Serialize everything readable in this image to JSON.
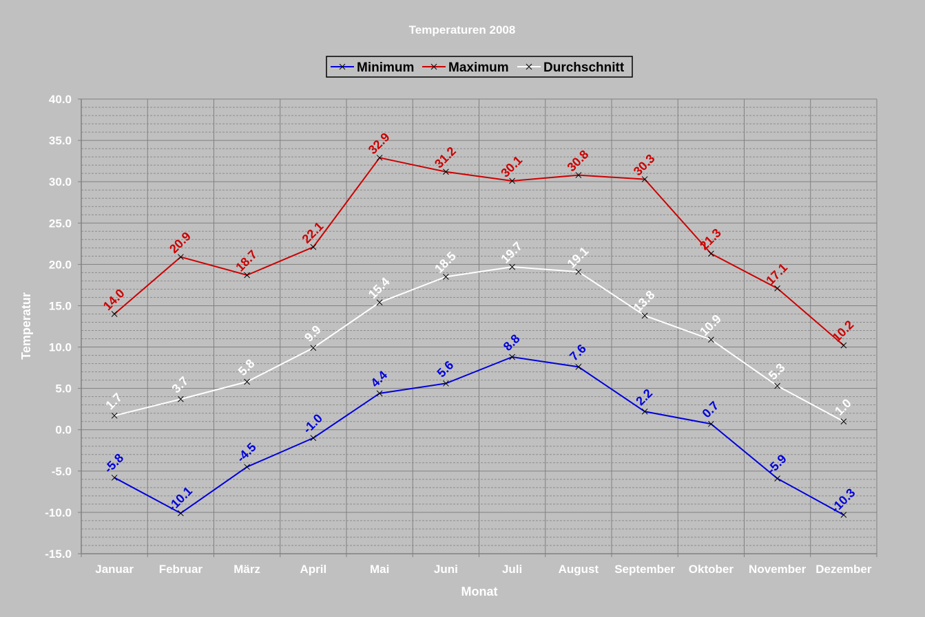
{
  "chart_data": {
    "type": "line",
    "title": "Temperaturen 2008",
    "xlabel": "Monat",
    "ylabel": "Temperatur",
    "categories": [
      "Januar",
      "Februar",
      "März",
      "April",
      "Mai",
      "Juni",
      "Juli",
      "August",
      "September",
      "Oktober",
      "November",
      "Dezember"
    ],
    "ylim": [
      -15,
      40
    ],
    "y_major_step": 5,
    "y_minor_step": 1,
    "y_tick_labels": [
      "40.0",
      "35.0",
      "30.0",
      "25.0",
      "20.0",
      "15.0",
      "10.0",
      "5.0",
      "0.0",
      "-5.0",
      "-10.0",
      "-15.0"
    ],
    "grid": true,
    "legend_position": "top-center",
    "background_color": "#c0c0c0",
    "text_color": "#ffffff",
    "series": [
      {
        "name": "Minimum",
        "color": "#0000dd",
        "values": [
          -5.8,
          -10.1,
          -4.5,
          -1.0,
          4.4,
          5.6,
          8.8,
          7.6,
          2.2,
          0.7,
          -5.9,
          -10.3
        ],
        "labels": [
          "-5.8",
          "-10.1",
          "-4.5",
          "-1.0",
          "4.4",
          "5.6",
          "8.8",
          "7.6",
          "2.2",
          "0.7",
          "-5.9",
          "-10.3"
        ]
      },
      {
        "name": "Maximum",
        "color": "#cc0000",
        "values": [
          14.0,
          20.9,
          18.7,
          22.1,
          32.9,
          31.2,
          30.1,
          30.8,
          30.3,
          21.3,
          17.1,
          10.2
        ],
        "labels": [
          "14.0",
          "20.9",
          "18.7",
          "22.1",
          "32.9",
          "31.2",
          "30.1",
          "30.8",
          "30.3",
          "21.3",
          "17.1",
          "10.2"
        ]
      },
      {
        "name": "Durchschnitt",
        "color": "#ffffff",
        "values": [
          1.7,
          3.7,
          5.8,
          9.9,
          15.4,
          18.5,
          19.7,
          19.1,
          13.8,
          10.9,
          5.3,
          1.0
        ],
        "labels": [
          "1.7",
          "3.7",
          "5.8",
          "9.9",
          "15.4",
          "18.5",
          "19.7",
          "19.1",
          "13.8",
          "10.9",
          "5.3",
          "1.0"
        ]
      }
    ]
  }
}
